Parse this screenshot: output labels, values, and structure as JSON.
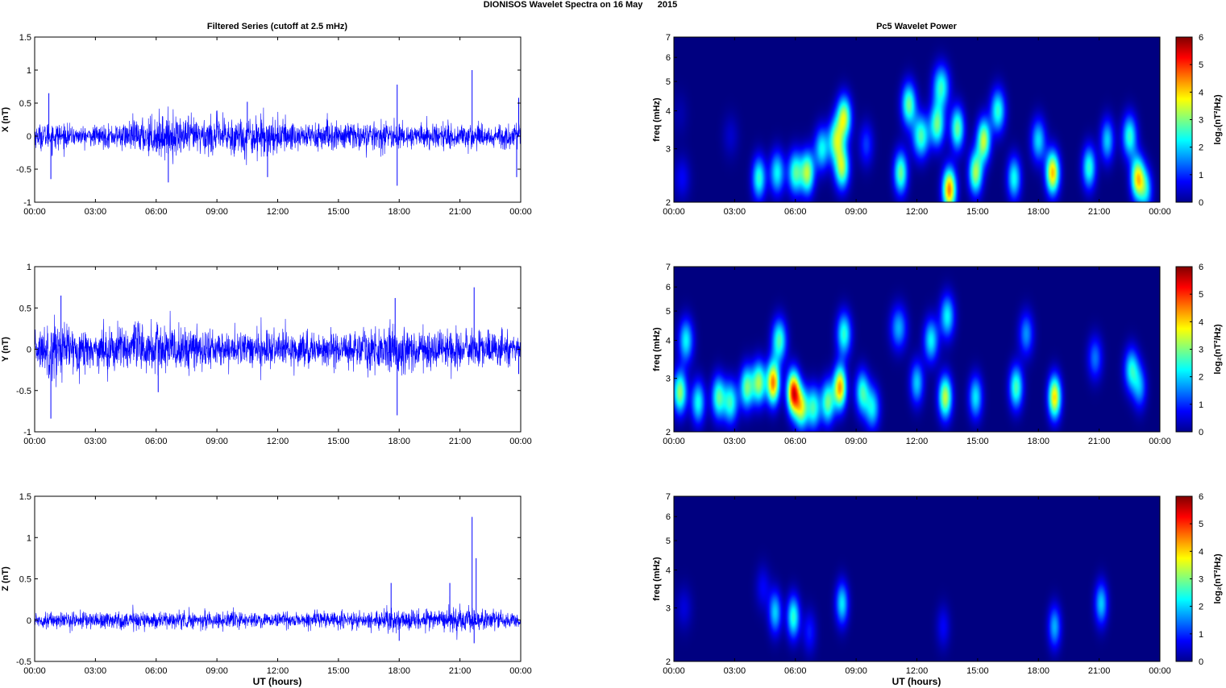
{
  "figure": {
    "title": "DIONISOS Wavelet Spectra on 16 May      2015",
    "left_title": "Filtered Series (cutoff at 2.5 mHz)",
    "right_title": "Pc5 Wavelet Power",
    "xlabel": "UT (hours)"
  },
  "colors": {
    "trace": "#0000ff",
    "background": "#00008f"
  },
  "chart_data": [
    {
      "type": "line",
      "component": "X",
      "ylabel": "X (nT)",
      "xlim": [
        0,
        24
      ],
      "ylim": [
        -1,
        1.5
      ],
      "yticks": [
        "-1",
        "-0.5",
        "0",
        "0.5",
        "1",
        "1.5"
      ],
      "xticks": [
        "00:00",
        "03:00",
        "06:00",
        "09:00",
        "12:00",
        "15:00",
        "18:00",
        "21:00",
        "00:00"
      ],
      "noise_envelope": [
        [
          0,
          0.15
        ],
        [
          1,
          0.2
        ],
        [
          2,
          0.12
        ],
        [
          4,
          0.16
        ],
        [
          6,
          0.28
        ],
        [
          8,
          0.25
        ],
        [
          11,
          0.28
        ],
        [
          13,
          0.2
        ],
        [
          15,
          0.2
        ],
        [
          17,
          0.18
        ],
        [
          19,
          0.16
        ],
        [
          21,
          0.18
        ],
        [
          24,
          0.16
        ]
      ],
      "spikes": [
        [
          0.7,
          0.65
        ],
        [
          0.8,
          -0.65
        ],
        [
          6.6,
          -0.7
        ],
        [
          10.5,
          0.52
        ],
        [
          11.5,
          -0.62
        ],
        [
          17.9,
          0.78
        ],
        [
          17.9,
          -0.75
        ],
        [
          21.6,
          1.0
        ],
        [
          23.8,
          -0.62
        ],
        [
          23.9,
          0.58
        ]
      ]
    },
    {
      "type": "line",
      "component": "Y",
      "ylabel": "Y (nT)",
      "xlim": [
        0,
        24
      ],
      "ylim": [
        -1,
        1
      ],
      "yticks": [
        "-1",
        "-0.5",
        "0",
        "0.5",
        "1"
      ],
      "xticks": [
        "00:00",
        "03:00",
        "06:00",
        "09:00",
        "12:00",
        "15:00",
        "18:00",
        "21:00",
        "00:00"
      ],
      "noise_envelope": [
        [
          0,
          0.18
        ],
        [
          1,
          0.35
        ],
        [
          2,
          0.22
        ],
        [
          3,
          0.2
        ],
        [
          5,
          0.3
        ],
        [
          7,
          0.25
        ],
        [
          9,
          0.2
        ],
        [
          12,
          0.18
        ],
        [
          15,
          0.18
        ],
        [
          17.5,
          0.25
        ],
        [
          19,
          0.22
        ],
        [
          21,
          0.22
        ],
        [
          24,
          0.15
        ]
      ],
      "spikes": [
        [
          0.8,
          -0.84
        ],
        [
          1.3,
          0.65
        ],
        [
          6.1,
          -0.52
        ],
        [
          17.8,
          0.62
        ],
        [
          17.9,
          -0.8
        ],
        [
          21.7,
          0.75
        ],
        [
          23.9,
          -0.3
        ]
      ]
    },
    {
      "type": "line",
      "component": "Z",
      "ylabel": "Z (nT)",
      "xlim": [
        0,
        24
      ],
      "ylim": [
        -0.5,
        1.5
      ],
      "yticks": [
        "-0.5",
        "0",
        "0.5",
        "1",
        "1.5"
      ],
      "xticks": [
        "00:00",
        "03:00",
        "06:00",
        "09:00",
        "12:00",
        "15:00",
        "18:00",
        "21:00",
        "00:00"
      ],
      "noise_envelope": [
        [
          0,
          0.08
        ],
        [
          4,
          0.1
        ],
        [
          8,
          0.09
        ],
        [
          12,
          0.08
        ],
        [
          16,
          0.09
        ],
        [
          17.5,
          0.12
        ],
        [
          19,
          0.1
        ],
        [
          20.5,
          0.16
        ],
        [
          22,
          0.12
        ],
        [
          24,
          0.08
        ]
      ],
      "spikes": [
        [
          17.6,
          0.45
        ],
        [
          18.0,
          -0.25
        ],
        [
          21.6,
          1.25
        ],
        [
          21.7,
          -0.28
        ],
        [
          21.8,
          0.75
        ],
        [
          20.5,
          0.45
        ]
      ]
    },
    {
      "type": "heatmap",
      "component": "X",
      "ylabel": "freq (mHz)",
      "clabel": "log₂(nT²/Hz)",
      "xlim": [
        0,
        24
      ],
      "ylim": [
        2,
        7
      ],
      "yscale": "log",
      "clim": [
        0,
        6
      ],
      "yticks": [
        "2",
        "3",
        "4",
        "5",
        "6",
        "7"
      ],
      "cticks": [
        "0",
        "1",
        "2",
        "3",
        "4",
        "5",
        "6"
      ],
      "xticks": [
        "00:00",
        "03:00",
        "06:00",
        "09:00",
        "12:00",
        "15:00",
        "18:00",
        "21:00",
        "00:00"
      ],
      "blobs": [
        [
          0.4,
          2.4,
          2.5,
          0.8
        ],
        [
          0.3,
          3.9,
          2.5,
          0.3
        ],
        [
          2.8,
          3.3,
          2.5,
          0.5
        ],
        [
          4.2,
          2.4,
          3.0,
          2.8
        ],
        [
          5.1,
          2.5,
          2.8,
          2.5
        ],
        [
          6.0,
          2.5,
          2.8,
          3.0
        ],
        [
          6.6,
          2.5,
          3.0,
          3.6
        ],
        [
          7.3,
          3.0,
          2.8,
          2.5
        ],
        [
          8.0,
          3.2,
          2.8,
          3.2
        ],
        [
          8.3,
          2.6,
          2.8,
          3.6
        ],
        [
          8.4,
          3.8,
          2.8,
          3.8
        ],
        [
          9.5,
          3.1,
          2.8,
          1.2
        ],
        [
          11.2,
          2.5,
          3.0,
          3.2
        ],
        [
          11.6,
          4.2,
          2.8,
          3.2
        ],
        [
          12.2,
          3.3,
          2.5,
          3.0
        ],
        [
          13.0,
          3.6,
          2.8,
          3.2
        ],
        [
          13.2,
          4.8,
          2.5,
          2.8
        ],
        [
          13.6,
          2.2,
          3.0,
          5.0
        ],
        [
          14.0,
          3.5,
          3.0,
          3.2
        ],
        [
          14.9,
          2.5,
          3.0,
          3.6
        ],
        [
          15.3,
          3.2,
          3.0,
          3.8
        ],
        [
          16.0,
          4.0,
          2.8,
          2.8
        ],
        [
          16.8,
          2.4,
          3.0,
          2.6
        ],
        [
          18.0,
          3.2,
          2.8,
          2.3
        ],
        [
          18.7,
          2.5,
          3.0,
          4.6
        ],
        [
          20.5,
          2.6,
          3.0,
          2.8
        ],
        [
          21.4,
          3.2,
          3.0,
          2.2
        ],
        [
          22.5,
          3.3,
          2.8,
          2.8
        ],
        [
          22.9,
          2.4,
          3.0,
          4.2
        ],
        [
          23.3,
          2.2,
          3.0,
          2.2
        ]
      ]
    },
    {
      "type": "heatmap",
      "component": "Y",
      "ylabel": "freq (mHz)",
      "clabel": "log₂(nT²/Hz)",
      "xlim": [
        0,
        24
      ],
      "ylim": [
        2,
        7
      ],
      "yscale": "log",
      "clim": [
        0,
        6
      ],
      "yticks": [
        "2",
        "3",
        "4",
        "5",
        "6",
        "7"
      ],
      "cticks": [
        "0",
        "1",
        "2",
        "3",
        "4",
        "5",
        "6"
      ],
      "xticks": [
        "00:00",
        "03:00",
        "06:00",
        "09:00",
        "12:00",
        "15:00",
        "18:00",
        "21:00",
        "00:00"
      ],
      "blobs": [
        [
          0.3,
          2.7,
          3.0,
          3.5
        ],
        [
          0.6,
          4.0,
          2.8,
          2.5
        ],
        [
          1.2,
          2.5,
          3.0,
          2.6
        ],
        [
          2.2,
          2.6,
          3.0,
          3.0
        ],
        [
          2.8,
          2.5,
          2.8,
          2.8
        ],
        [
          3.6,
          2.8,
          3.0,
          3.2
        ],
        [
          4.2,
          2.9,
          3.0,
          3.5
        ],
        [
          4.9,
          2.9,
          3.2,
          5.0
        ],
        [
          5.2,
          4.0,
          2.8,
          3.0
        ],
        [
          5.9,
          2.7,
          3.2,
          5.6
        ],
        [
          6.3,
          2.4,
          3.0,
          3.6
        ],
        [
          6.9,
          2.4,
          3.0,
          2.8
        ],
        [
          7.6,
          2.5,
          3.0,
          3.2
        ],
        [
          8.2,
          2.8,
          3.2,
          4.8
        ],
        [
          8.4,
          4.2,
          2.8,
          2.8
        ],
        [
          9.3,
          2.7,
          3.0,
          2.8
        ],
        [
          9.8,
          2.4,
          2.8,
          2.4
        ],
        [
          11.1,
          4.4,
          2.5,
          2.0
        ],
        [
          12.0,
          2.9,
          3.0,
          2.2
        ],
        [
          12.7,
          4.0,
          2.8,
          2.5
        ],
        [
          13.4,
          2.6,
          3.0,
          3.8
        ],
        [
          13.5,
          4.8,
          2.8,
          2.5
        ],
        [
          14.9,
          2.6,
          3.0,
          2.4
        ],
        [
          16.9,
          2.8,
          3.0,
          3.0
        ],
        [
          17.4,
          4.2,
          2.8,
          1.8
        ],
        [
          18.8,
          2.6,
          3.2,
          4.4
        ],
        [
          20.8,
          3.5,
          2.8,
          1.6
        ],
        [
          22.6,
          3.2,
          2.8,
          2.6
        ],
        [
          23.0,
          2.8,
          3.0,
          1.8
        ]
      ]
    },
    {
      "type": "heatmap",
      "component": "Z",
      "ylabel": "freq (mHz)",
      "clabel": "log₂(nT²/Hz)",
      "xlim": [
        0,
        24
      ],
      "ylim": [
        2,
        7
      ],
      "yscale": "log",
      "clim": [
        0,
        6
      ],
      "yticks": [
        "2",
        "3",
        "4",
        "5",
        "6",
        "7"
      ],
      "cticks": [
        "0",
        "1",
        "2",
        "3",
        "4",
        "5",
        "6"
      ],
      "xticks": [
        "00:00",
        "03:00",
        "06:00",
        "09:00",
        "12:00",
        "15:00",
        "18:00",
        "21:00",
        "00:00"
      ],
      "blobs": [
        [
          0.5,
          3.0,
          2.5,
          0.6
        ],
        [
          4.4,
          3.5,
          2.8,
          0.8
        ],
        [
          5.0,
          2.9,
          3.2,
          2.2
        ],
        [
          5.9,
          2.8,
          3.2,
          2.8
        ],
        [
          6.7,
          2.5,
          3.0,
          1.0
        ],
        [
          8.3,
          3.1,
          3.2,
          2.4
        ],
        [
          13.3,
          2.6,
          3.0,
          0.8
        ],
        [
          18.8,
          2.6,
          3.2,
          2.0
        ],
        [
          21.1,
          3.1,
          3.2,
          2.2
        ]
      ]
    }
  ]
}
